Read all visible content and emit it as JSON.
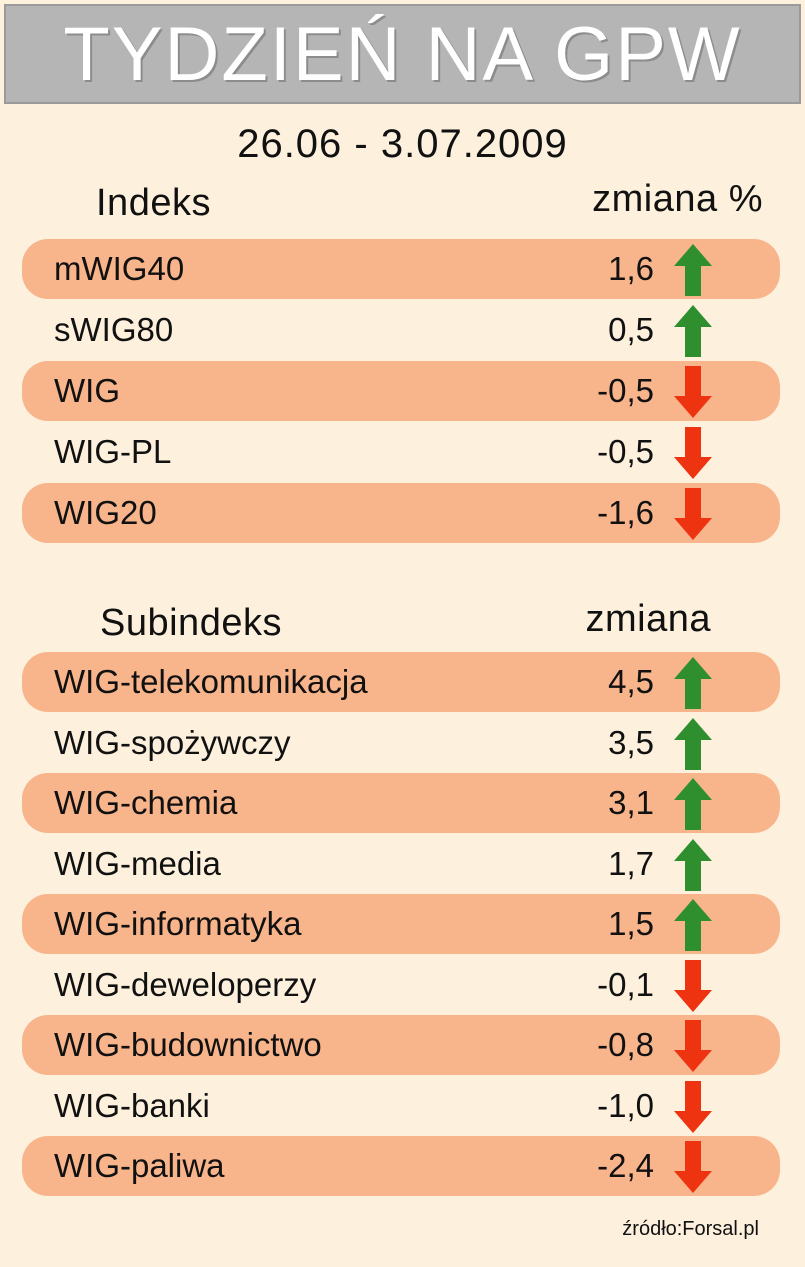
{
  "header": {
    "title": "TYDZIEŃ NA GPW",
    "date_range": "26.06 - 3.07.2009"
  },
  "colors": {
    "up": "#2f8f2f",
    "down": "#ee3311",
    "row_shade": "#f8b48a",
    "background": "#fdf0dd"
  },
  "chart_data": [
    {
      "type": "table",
      "title": "Indeks",
      "column_headers": [
        "Indeks",
        "zmiana %"
      ],
      "rows": [
        {
          "name": "mWIG40",
          "value": "1,6",
          "direction": "up"
        },
        {
          "name": "sWIG80",
          "value": "0,5",
          "direction": "up"
        },
        {
          "name": "WIG",
          "value": "-0,5",
          "direction": "down"
        },
        {
          "name": "WIG-PL",
          "value": "-0,5",
          "direction": "down"
        },
        {
          "name": "WIG20",
          "value": "-1,6",
          "direction": "down"
        }
      ]
    },
    {
      "type": "table",
      "title": "Subindeks",
      "column_headers": [
        "Subindeks",
        "zmiana"
      ],
      "rows": [
        {
          "name": "WIG-telekomunikacja",
          "value": "4,5",
          "direction": "up"
        },
        {
          "name": "WIG-spożywczy",
          "value": "3,5",
          "direction": "up"
        },
        {
          "name": "WIG-chemia",
          "value": "3,1",
          "direction": "up"
        },
        {
          "name": "WIG-media",
          "value": "1,7",
          "direction": "up"
        },
        {
          "name": "WIG-informatyka",
          "value": "1,5",
          "direction": "up"
        },
        {
          "name": "WIG-deweloperzy",
          "value": "-0,1",
          "direction": "down"
        },
        {
          "name": "WIG-budownictwo",
          "value": "-0,8",
          "direction": "down"
        },
        {
          "name": "WIG-banki",
          "value": "-1,0",
          "direction": "down"
        },
        {
          "name": "WIG-paliwa",
          "value": "-2,4",
          "direction": "down"
        }
      ]
    }
  ],
  "footer": {
    "source": "źródło:Forsal.pl"
  }
}
